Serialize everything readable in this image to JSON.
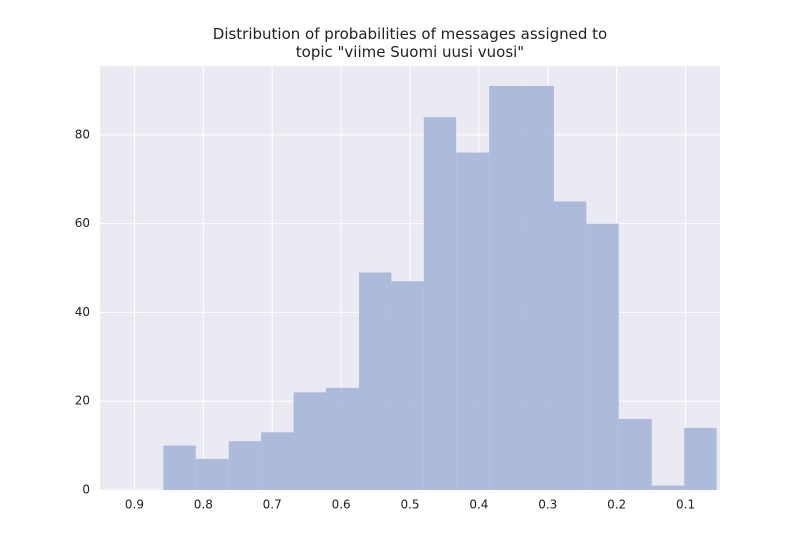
{
  "chart_data": {
    "type": "histogram",
    "title": "Distribution of probabilities of messages assigned to\ntopic \"viime Suomi uusi vuosi\"",
    "bins": [
      0.055,
      0.102,
      0.149,
      0.197,
      0.244,
      0.291,
      0.338,
      0.385,
      0.433,
      0.48,
      0.527,
      0.574,
      0.622,
      0.669,
      0.716,
      0.763,
      0.811,
      0.858
    ],
    "counts": [
      14,
      1,
      16,
      60,
      65,
      91,
      91,
      76,
      84,
      47,
      49,
      23,
      22,
      13,
      11,
      7,
      10
    ],
    "color": "#a9b8d8",
    "xlim": [
      0.95,
      0.05
    ],
    "xticks": [
      0.9,
      0.8,
      0.7,
      0.6,
      0.5,
      0.4,
      0.3,
      0.2,
      0.1
    ],
    "ylim": [
      0,
      95.5
    ],
    "yticks": [
      0,
      20,
      40,
      60,
      80
    ],
    "grid": true
  }
}
